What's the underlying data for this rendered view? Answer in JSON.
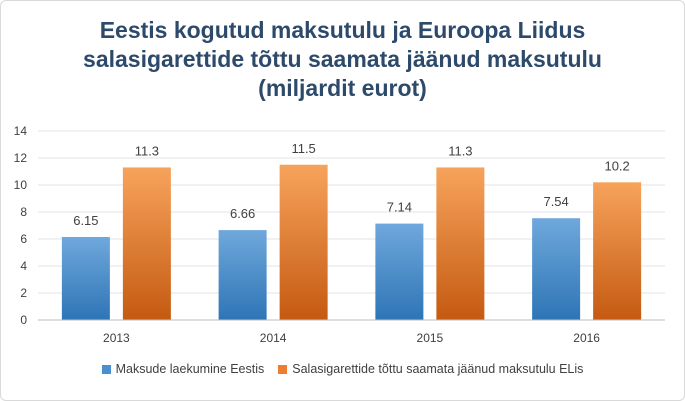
{
  "chart_data": {
    "type": "bar",
    "title_lines": [
      "Eestis kogutud maksutulu ja Euroopa Liidus",
      "salasigarettide tõttu saamata jäänud maksutulu",
      "(miljardit eurot)"
    ],
    "categories": [
      "2013",
      "2014",
      "2015",
      "2016"
    ],
    "series": [
      {
        "name": "Maksude laekumine Eestis",
        "values": [
          6.15,
          6.66,
          7.14,
          7.54
        ],
        "labels": [
          "6.15",
          "6.66",
          "7.14",
          "7.54"
        ],
        "color_top": "#6fa8dc",
        "color_bottom": "#2e75b6"
      },
      {
        "name": "Salasigarettide tõttu saamata jäänud maksutulu ELis",
        "values": [
          11.3,
          11.5,
          11.3,
          10.2
        ],
        "labels": [
          "11.3",
          "11.5",
          "11.3",
          "10.2"
        ],
        "color_top": "#f7a35c",
        "color_bottom": "#c55a11"
      }
    ],
    "ylim": [
      0,
      14
    ],
    "yticks": [
      "0",
      "2",
      "4",
      "6",
      "8",
      "10",
      "12",
      "14"
    ],
    "grid": true,
    "legend": "bottom"
  }
}
